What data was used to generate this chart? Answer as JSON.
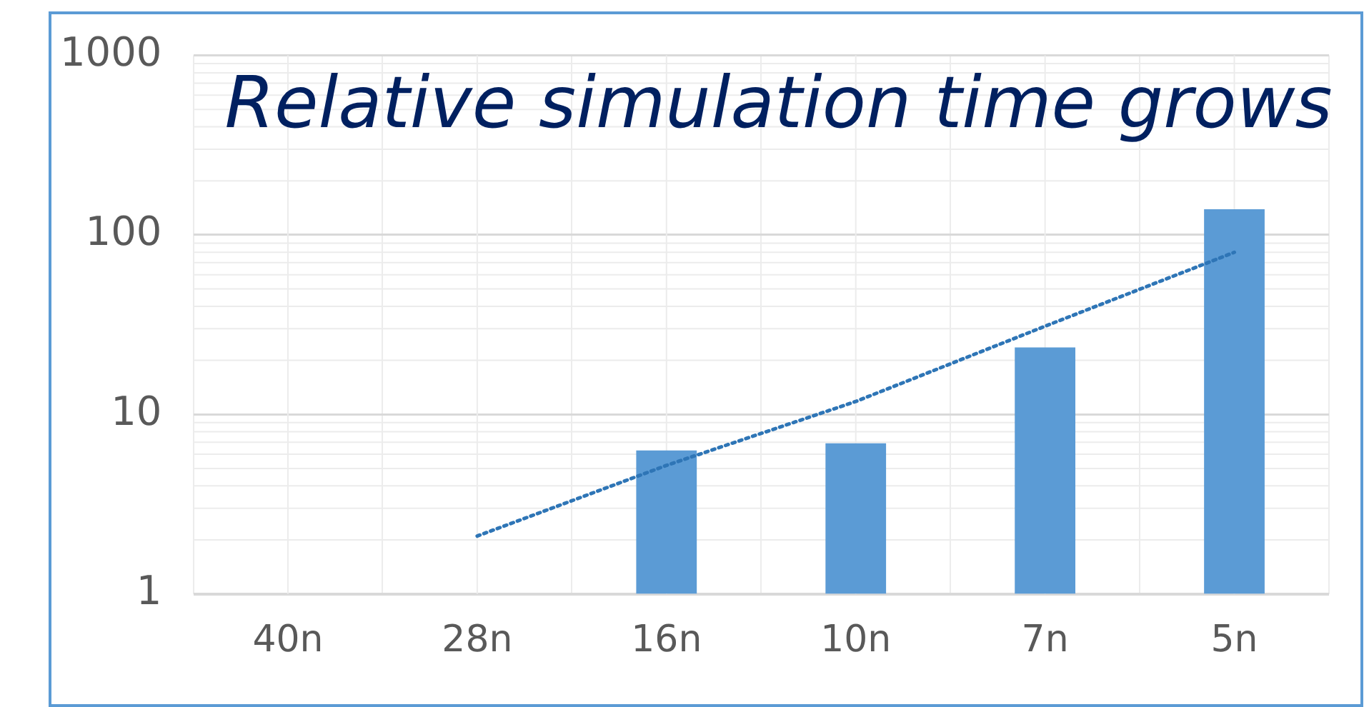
{
  "chart_data": {
    "type": "bar",
    "title": "Relative simulation time grows",
    "categories": [
      "40n",
      "28n",
      "16n",
      "10n",
      "7n",
      "5n"
    ],
    "series": [
      {
        "color": "#5b9bd5",
        "values": [
          null,
          null,
          6.3,
          6.9,
          23.6,
          139
        ]
      },
      {
        "type": "line",
        "color": "#2e75b6",
        "line_style": "dotted",
        "marker": "none",
        "values": [
          null,
          2.1,
          5.2,
          11.8,
          31,
          80
        ]
      }
    ],
    "log": "y",
    "ylim": [
      1,
      1000
    ],
    "yticks": [
      1,
      10,
      100,
      1000
    ],
    "grid": true,
    "legend": false
  }
}
